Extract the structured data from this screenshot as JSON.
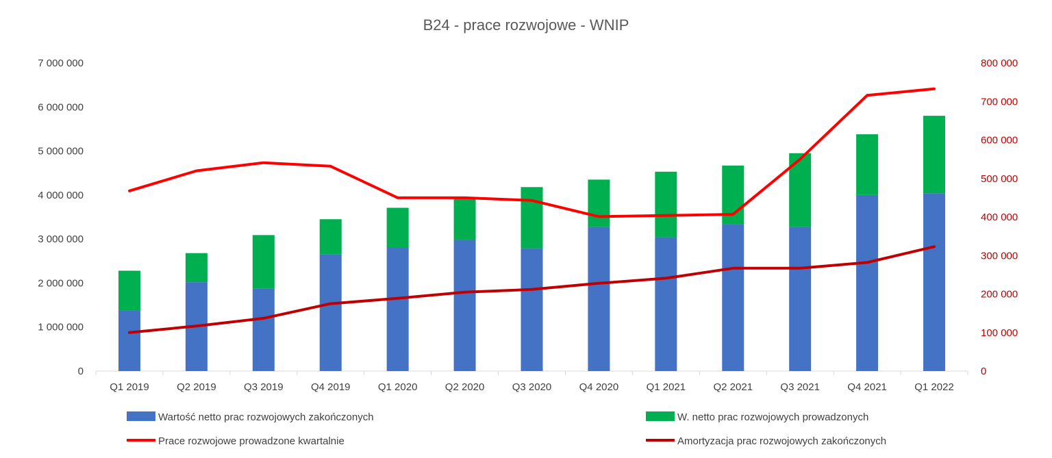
{
  "chart_data": {
    "type": "bar",
    "stacked": true,
    "title": "B24 - prace rozwojowe - WNIP",
    "categories": [
      "Q1 2019",
      "Q2 2019",
      "Q3 2019",
      "Q4 2019",
      "Q1 2020",
      "Q2 2020",
      "Q3 2020",
      "Q4 2020",
      "Q1 2021",
      "Q2 2021",
      "Q3 2021",
      "Q4 2021",
      "Q1 2022"
    ],
    "y_left": {
      "min": 0,
      "max": 7000000,
      "ticks": [
        "0",
        "1 000 000",
        "2 000 000",
        "3 000 000",
        "4 000 000",
        "5 000 000",
        "6 000 000",
        "7 000 000"
      ]
    },
    "y_right": {
      "min": 0,
      "max": 800000,
      "ticks": [
        "0",
        "100 000",
        "200 000",
        "300 000",
        "400 000",
        "500 000",
        "600 000",
        "700 000",
        "800 000"
      ]
    },
    "grid": false,
    "legend_position": "bottom",
    "series": [
      {
        "name": "Wartość netto prac rozwojowych zakończonych",
        "type": "bar",
        "axis": "left",
        "color": "#4472c4",
        "values": [
          1370000,
          2020000,
          1880000,
          2650000,
          2800000,
          2980000,
          2790000,
          3280000,
          3040000,
          3330000,
          3280000,
          4000000,
          4040000
        ]
      },
      {
        "name": "W. netto prac rozwojowych prowadzonych",
        "type": "bar",
        "axis": "left",
        "color": "#00b050",
        "values": [
          910000,
          660000,
          1210000,
          800000,
          910000,
          970000,
          1390000,
          1070000,
          1490000,
          1340000,
          1670000,
          1380000,
          1760000
        ]
      },
      {
        "name": "Prace rozwojowe prowadzone kwartalnie",
        "type": "line",
        "axis": "right",
        "color": "#ff0000",
        "values": [
          468000,
          520000,
          541000,
          532000,
          450000,
          450000,
          443000,
          401000,
          404000,
          407000,
          550000,
          716000,
          733000
        ]
      },
      {
        "name": "Amortyzacja prac rozwojowych zakończonych",
        "type": "line",
        "axis": "right",
        "color": "#c00000",
        "values": [
          100000,
          117000,
          137000,
          175000,
          189000,
          205000,
          212000,
          228000,
          241000,
          267000,
          267000,
          282000,
          323000
        ]
      }
    ]
  }
}
